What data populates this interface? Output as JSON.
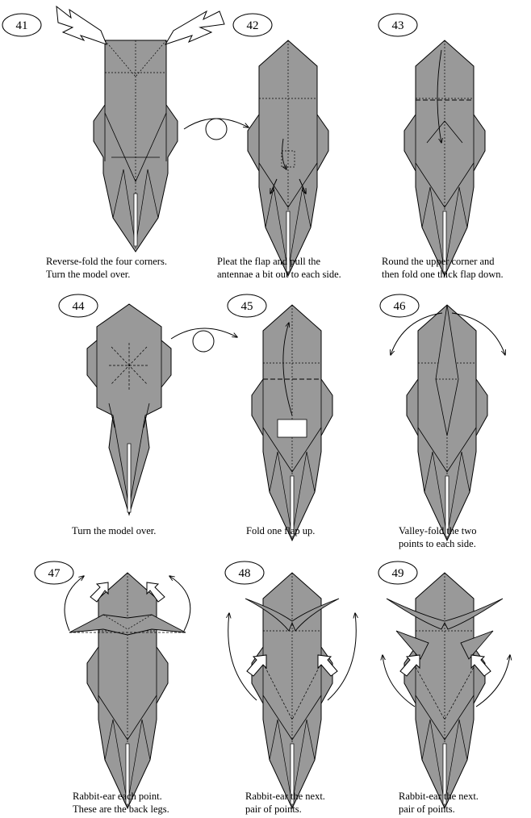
{
  "steps": [
    {
      "number": "41",
      "caption": [
        "Reverse-fold the four corners.",
        "Turn the model over."
      ]
    },
    {
      "number": "42",
      "caption": [
        "Pleat the flap and pull the",
        "antennae a bit out to each side."
      ]
    },
    {
      "number": "43",
      "caption": [
        "Round the upper corner and",
        "then fold one thick flap down."
      ]
    },
    {
      "number": "44",
      "caption": [
        "Turn the model over."
      ]
    },
    {
      "number": "45",
      "caption": [
        "Fold one flap up."
      ]
    },
    {
      "number": "46",
      "caption": [
        "Valley-fold the two",
        "points to each side."
      ]
    },
    {
      "number": "47",
      "caption": [
        "Rabbit-ear each point.",
        "These are the back legs."
      ]
    },
    {
      "number": "48",
      "caption": [
        "Rabbit-ear  the next.",
        "pair of points."
      ]
    },
    {
      "number": "49",
      "caption": [
        "Rabbit-ear  the next.",
        "pair of points."
      ]
    }
  ],
  "colors": {
    "paper": "#999999",
    "line": "#000000",
    "background": "#ffffff"
  }
}
